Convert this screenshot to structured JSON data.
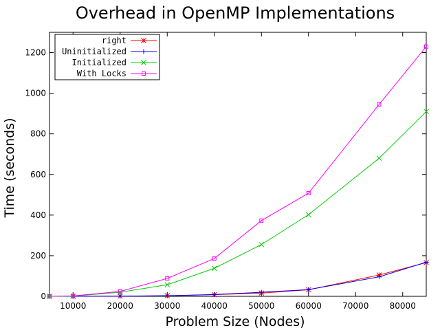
{
  "chart_data": {
    "type": "line",
    "title": "Overhead in OpenMP Implementations",
    "xlabel": "Problem Size (Nodes)",
    "ylabel": "Time (seconds)",
    "xlim": [
      5000,
      85000
    ],
    "ylim": [
      0,
      1300
    ],
    "xticks": [
      10000,
      20000,
      30000,
      40000,
      50000,
      60000,
      70000,
      80000
    ],
    "yticks": [
      0,
      200,
      400,
      600,
      800,
      1000,
      1200
    ],
    "grid": false,
    "legend_position": "top-left",
    "x": [
      5000,
      10000,
      20000,
      30000,
      40000,
      50000,
      60000,
      75000,
      85000
    ],
    "series": [
      {
        "name": "right",
        "marker": "star",
        "color": "#ff0000",
        "values": [
          0,
          0,
          1,
          3,
          8,
          16,
          32,
          105,
          166
        ]
      },
      {
        "name": "Uninitialized",
        "marker": "plus",
        "color": "#0000ff",
        "values": [
          0,
          0,
          1,
          3,
          9,
          20,
          33,
          96,
          168
        ]
      },
      {
        "name": "Initialized",
        "marker": "x",
        "color": "#00cc00",
        "values": [
          0,
          1,
          20,
          57,
          138,
          255,
          402,
          680,
          910
        ]
      },
      {
        "name": "With Locks",
        "marker": "square",
        "color": "#ff00ff",
        "values": [
          0,
          2,
          24,
          88,
          186,
          373,
          508,
          945,
          1230
        ]
      }
    ]
  }
}
